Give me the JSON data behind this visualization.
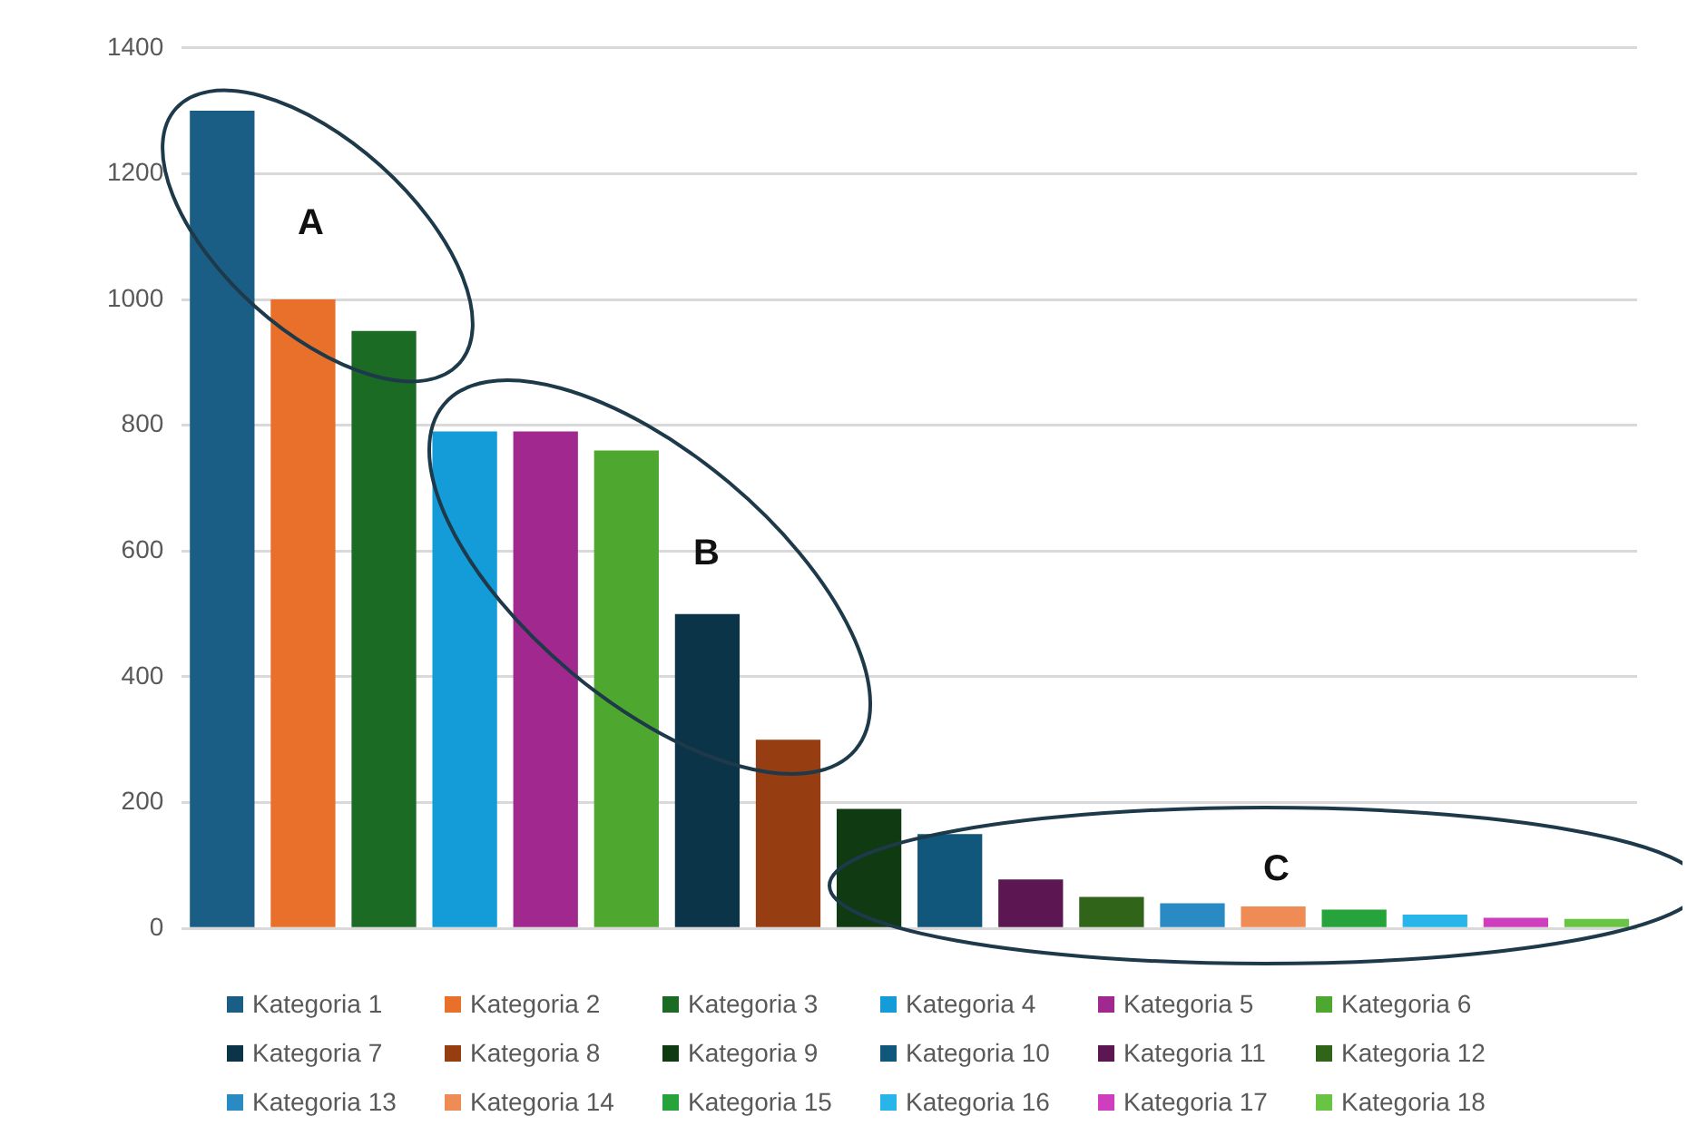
{
  "chart_data": {
    "type": "bar",
    "categories": [
      null,
      null,
      null,
      null,
      null,
      null,
      null,
      null,
      null,
      null,
      null,
      null,
      null,
      null,
      null,
      null,
      null,
      null
    ],
    "series": [
      {
        "name": "Kategoria 1",
        "color": "#1b5e85",
        "values": [
          1300,
          null,
          null,
          null,
          null,
          null,
          null,
          null,
          null,
          null,
          null,
          null,
          null,
          null,
          null,
          null,
          null,
          null
        ]
      },
      {
        "name": "Kategoria 2",
        "color": "#e8702a",
        "values": [
          null,
          1000,
          null,
          null,
          null,
          null,
          null,
          null,
          null,
          null,
          null,
          null,
          null,
          null,
          null,
          null,
          null,
          null
        ]
      },
      {
        "name": "Kategoria 3",
        "color": "#1b6b25",
        "values": [
          null,
          null,
          950,
          null,
          null,
          null,
          null,
          null,
          null,
          null,
          null,
          null,
          null,
          null,
          null,
          null,
          null,
          null
        ]
      },
      {
        "name": "Kategoria 4",
        "color": "#139cd8",
        "values": [
          null,
          null,
          null,
          790,
          null,
          null,
          null,
          null,
          null,
          null,
          null,
          null,
          null,
          null,
          null,
          null,
          null,
          null
        ]
      },
      {
        "name": "Kategoria 5",
        "color": "#a0288f",
        "values": [
          null,
          null,
          null,
          null,
          790,
          null,
          null,
          null,
          null,
          null,
          null,
          null,
          null,
          null,
          null,
          null,
          null,
          null
        ]
      },
      {
        "name": "Kategoria 6",
        "color": "#4ea72e",
        "values": [
          null,
          null,
          null,
          null,
          null,
          760,
          null,
          null,
          null,
          null,
          null,
          null,
          null,
          null,
          null,
          null,
          null,
          null
        ]
      },
      {
        "name": "Kategoria 7",
        "color": "#0c3449",
        "values": [
          null,
          null,
          null,
          null,
          null,
          null,
          500,
          null,
          null,
          null,
          null,
          null,
          null,
          null,
          null,
          null,
          null,
          null
        ]
      },
      {
        "name": "Kategoria 8",
        "color": "#973d12",
        "values": [
          null,
          null,
          null,
          null,
          null,
          null,
          null,
          300,
          null,
          null,
          null,
          null,
          null,
          null,
          null,
          null,
          null,
          null
        ]
      },
      {
        "name": "Kategoria 9",
        "color": "#0f3a12",
        "values": [
          null,
          null,
          null,
          null,
          null,
          null,
          null,
          null,
          190,
          null,
          null,
          null,
          null,
          null,
          null,
          null,
          null,
          null
        ]
      },
      {
        "name": "Kategoria 10",
        "color": "#11577b",
        "values": [
          null,
          null,
          null,
          null,
          null,
          null,
          null,
          null,
          null,
          150,
          null,
          null,
          null,
          null,
          null,
          null,
          null,
          null
        ]
      },
      {
        "name": "Kategoria 11",
        "color": "#5c1752",
        "values": [
          null,
          null,
          null,
          null,
          null,
          null,
          null,
          null,
          null,
          null,
          78,
          null,
          null,
          null,
          null,
          null,
          null,
          null
        ]
      },
      {
        "name": "Kategoria 12",
        "color": "#2f6419",
        "values": [
          null,
          null,
          null,
          null,
          null,
          null,
          null,
          null,
          null,
          null,
          null,
          50,
          null,
          null,
          null,
          null,
          null,
          null
        ]
      },
      {
        "name": "Kategoria 13",
        "color": "#2a8bc4",
        "values": [
          null,
          null,
          null,
          null,
          null,
          null,
          null,
          null,
          null,
          null,
          null,
          null,
          40,
          null,
          null,
          null,
          null,
          null
        ]
      },
      {
        "name": "Kategoria 14",
        "color": "#ef8b55",
        "values": [
          null,
          null,
          null,
          null,
          null,
          null,
          null,
          null,
          null,
          null,
          null,
          null,
          null,
          35,
          null,
          null,
          null,
          null
        ]
      },
      {
        "name": "Kategoria 15",
        "color": "#27a33b",
        "values": [
          null,
          null,
          null,
          null,
          null,
          null,
          null,
          null,
          null,
          null,
          null,
          null,
          null,
          null,
          30,
          null,
          null,
          null
        ]
      },
      {
        "name": "Kategoria 16",
        "color": "#27b5ea",
        "values": [
          null,
          null,
          null,
          null,
          null,
          null,
          null,
          null,
          null,
          null,
          null,
          null,
          null,
          null,
          null,
          22,
          null,
          null
        ]
      },
      {
        "name": "Kategoria 17",
        "color": "#d03ec0",
        "values": [
          null,
          null,
          null,
          null,
          null,
          null,
          null,
          null,
          null,
          null,
          null,
          null,
          null,
          null,
          null,
          null,
          17,
          null
        ]
      },
      {
        "name": "Kategoria 18",
        "color": "#6ac443",
        "values": [
          null,
          null,
          null,
          null,
          null,
          null,
          null,
          null,
          null,
          null,
          null,
          null,
          null,
          null,
          null,
          null,
          null,
          15
        ]
      }
    ],
    "ylim": [
      0,
      1400
    ],
    "yticks": [
      0,
      200,
      400,
      600,
      800,
      1000,
      1200,
      1400
    ],
    "grid": "y",
    "legend": "bottom",
    "tick_labels": "y",
    "annotations": [
      "A",
      "B",
      "C"
    ]
  }
}
